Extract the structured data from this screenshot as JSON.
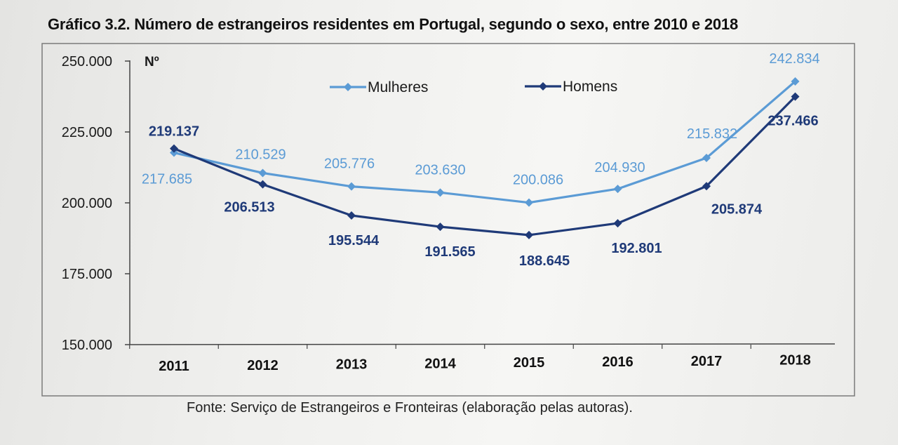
{
  "chart_data": {
    "type": "line",
    "title": "Gráfico 3.2. Número de estrangeiros residentes em Portugal, segundo o sexo, entre 2010 e 2018",
    "ylabel": "Nº",
    "xlabel": "",
    "categories": [
      "2011",
      "2012",
      "2013",
      "2014",
      "2015",
      "2016",
      "2017",
      "2018"
    ],
    "ylim": [
      150000,
      250000
    ],
    "yticks": [
      {
        "value": 150000,
        "label": "150.000"
      },
      {
        "value": 175000,
        "label": "175.000"
      },
      {
        "value": 200000,
        "label": "200.000"
      },
      {
        "value": 225000,
        "label": "225.000"
      },
      {
        "value": 250000,
        "label": "250.000"
      }
    ],
    "grid": false,
    "legend_position": "top-center",
    "series": [
      {
        "name": "Mulheres",
        "color": "#5b9bd5",
        "values": [
          217685,
          210529,
          205776,
          203630,
          200086,
          204930,
          215832,
          242834
        ],
        "labels": [
          "217.685",
          "210.529",
          "205.776",
          "203.630",
          "200.086",
          "204.930",
          "215.832",
          "242.834"
        ]
      },
      {
        "name": "Homens",
        "color": "#1f3a78",
        "values": [
          219137,
          206513,
          195544,
          191565,
          188645,
          192801,
          205874,
          237466
        ],
        "labels": [
          "219.137",
          "206.513",
          "195.544",
          "191.565",
          "188.645",
          "192.801",
          "205.874",
          "237.466"
        ]
      }
    ],
    "source": "Fonte: Serviço de Estrangeiros e Fronteiras (elaboração pelas autoras)."
  }
}
